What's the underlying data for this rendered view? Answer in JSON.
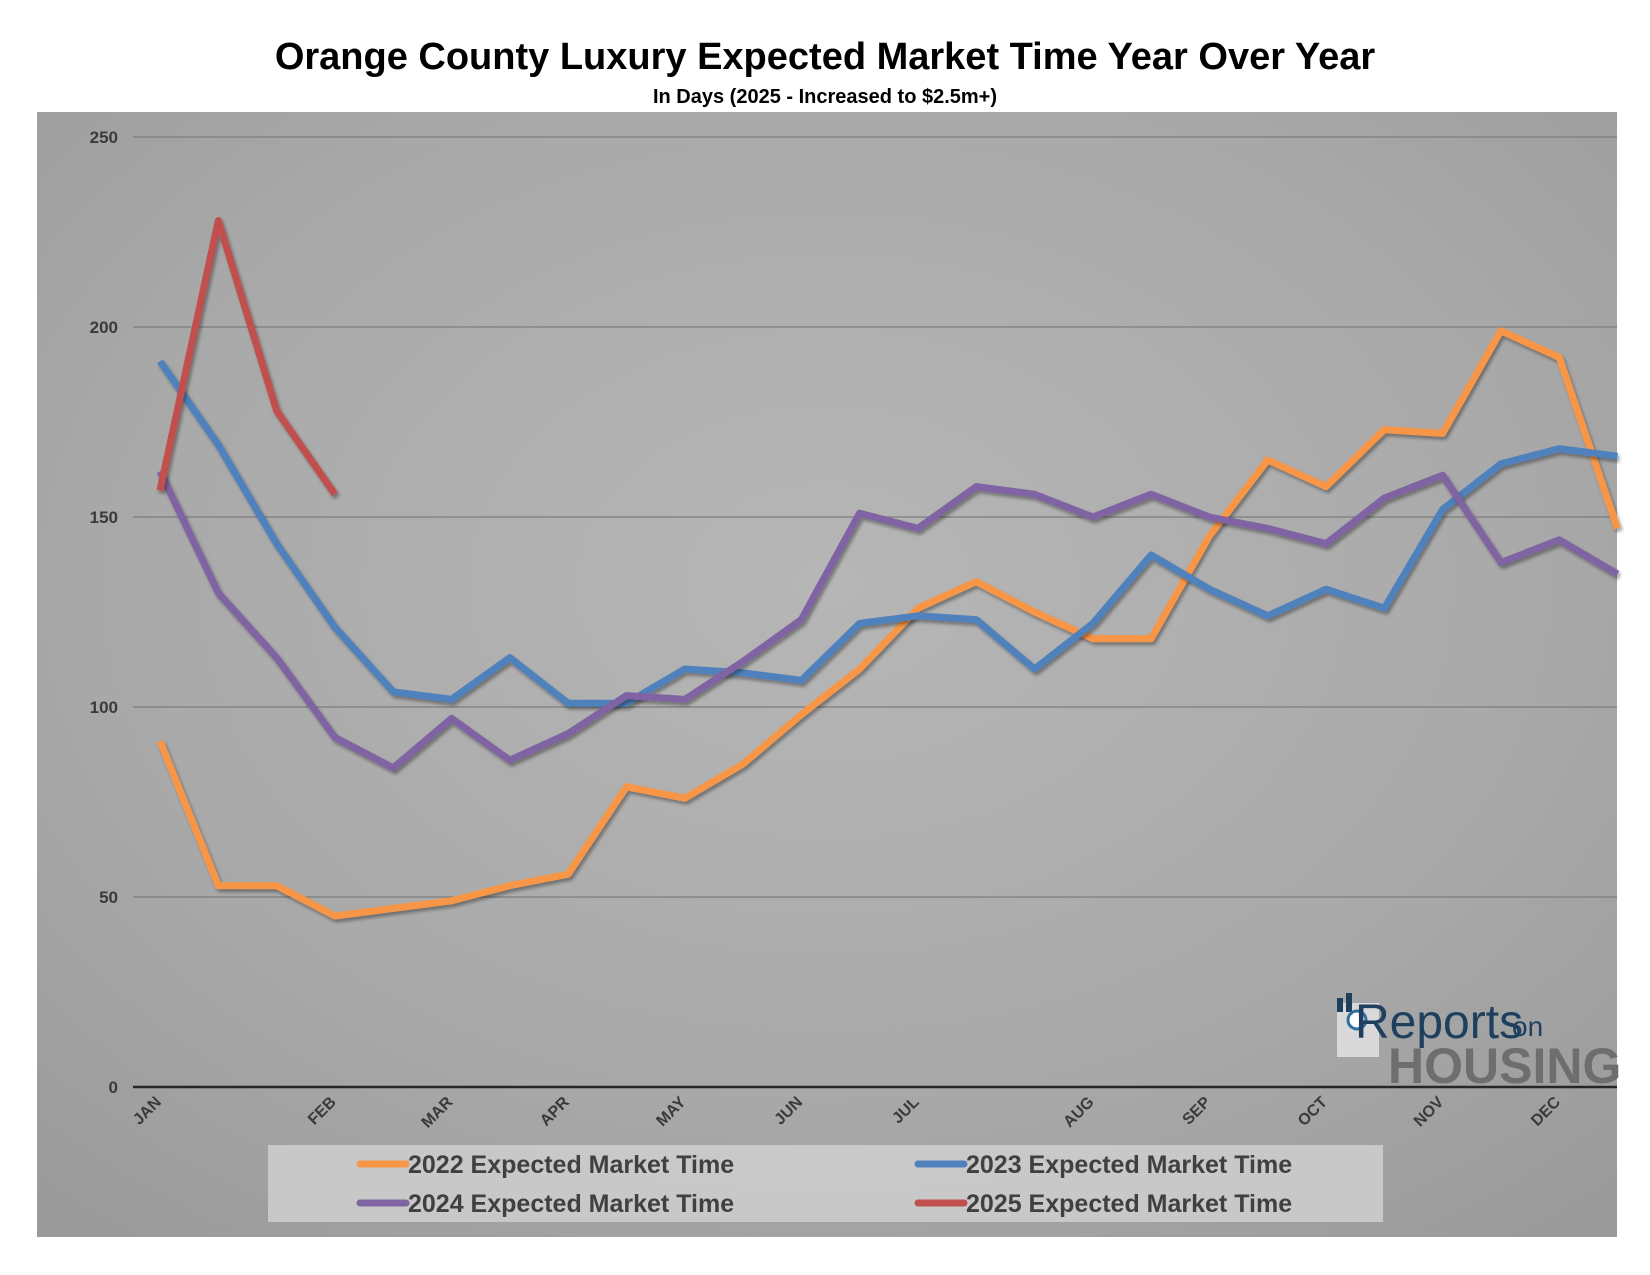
{
  "chart_data": {
    "type": "line",
    "title": "Orange County Luxury Expected Market Time Year Over Year",
    "subtitle": "In Days (2025 - Increased to $2.5m+)",
    "x_labels": [
      "JAN",
      "FEB",
      "MAR",
      "APR",
      "MAY",
      "JUN",
      "JUL",
      "AUG",
      "SEP",
      "OCT",
      "NOV",
      "DEC"
    ],
    "x_label_positions": [
      0,
      3,
      5,
      7,
      9,
      11,
      13,
      16,
      18,
      20,
      22,
      24
    ],
    "ylim": [
      0,
      250
    ],
    "yticks": [
      0,
      50,
      100,
      150,
      200,
      250
    ],
    "grid": true,
    "legend_position": "bottom",
    "series": [
      {
        "name": "2022 Expected Market Time",
        "color": "#f79646",
        "values": [
          91,
          53,
          53,
          45,
          47,
          49,
          53,
          56,
          79,
          76,
          85,
          98,
          110,
          126,
          133,
          125,
          118,
          118,
          145,
          165,
          158,
          173,
          172,
          199,
          192,
          147
        ]
      },
      {
        "name": "2023 Expected Market Time",
        "color": "#4f81bd",
        "values": [
          191,
          169,
          143,
          121,
          104,
          102,
          113,
          101,
          101,
          110,
          109,
          107,
          122,
          124,
          123,
          110,
          122,
          140,
          131,
          124,
          131,
          126,
          152,
          164,
          168,
          166
        ]
      },
      {
        "name": "2024 Expected Market Time",
        "color": "#8064a2",
        "values": [
          162,
          130,
          113,
          92,
          84,
          97,
          86,
          93,
          103,
          102,
          112,
          123,
          151,
          147,
          158,
          156,
          150,
          156,
          150,
          147,
          143,
          155,
          161,
          138,
          144,
          135
        ]
      },
      {
        "name": "2025 Expected Market Time",
        "color": "#c0504d",
        "values": [
          157,
          228,
          178,
          156
        ]
      }
    ]
  },
  "logo": {
    "top": "Reports",
    "on": "on",
    "bottom": "HOUSING"
  }
}
